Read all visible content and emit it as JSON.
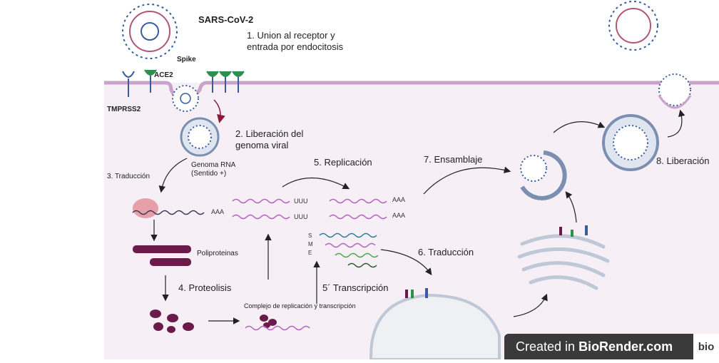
{
  "virus": {
    "name": "SARS-CoV-2",
    "spike": "Spike",
    "ace2": "ACE2",
    "tmprss2": "TMPRSS2"
  },
  "steps": {
    "s1": "1. Union al receptor y entrada por endocitosis",
    "s2": "2. Liberación del genoma viral",
    "genome": "Genoma RNA (Sentido +)",
    "s3": "3. Traducción",
    "polyproteins": "Poliproteinas",
    "s4": "4. Proteolisis",
    "complex": "Complejo de replicación y transcripción",
    "s5": "5. Replicación",
    "s5b": "5´ Transcripción",
    "s6": "6. Traducción",
    "s7": "7. Ensamblaje",
    "s8": "8. Liberación"
  },
  "rna_labels": {
    "uuu": "UUU",
    "aaa": "AAA",
    "s": "S",
    "m": "M",
    "e": "E"
  },
  "watermark": {
    "prefix": "Created in ",
    "brand": "BioRender.com",
    "logo": "bio"
  },
  "colors": {
    "cell": "#f5eef5",
    "membrane": "#c9a3c9",
    "rna_purple": "#b35fc0",
    "poly": "#6b1b4a",
    "virus_blue": "#3a5ba0",
    "er": "#bfc8d6"
  }
}
